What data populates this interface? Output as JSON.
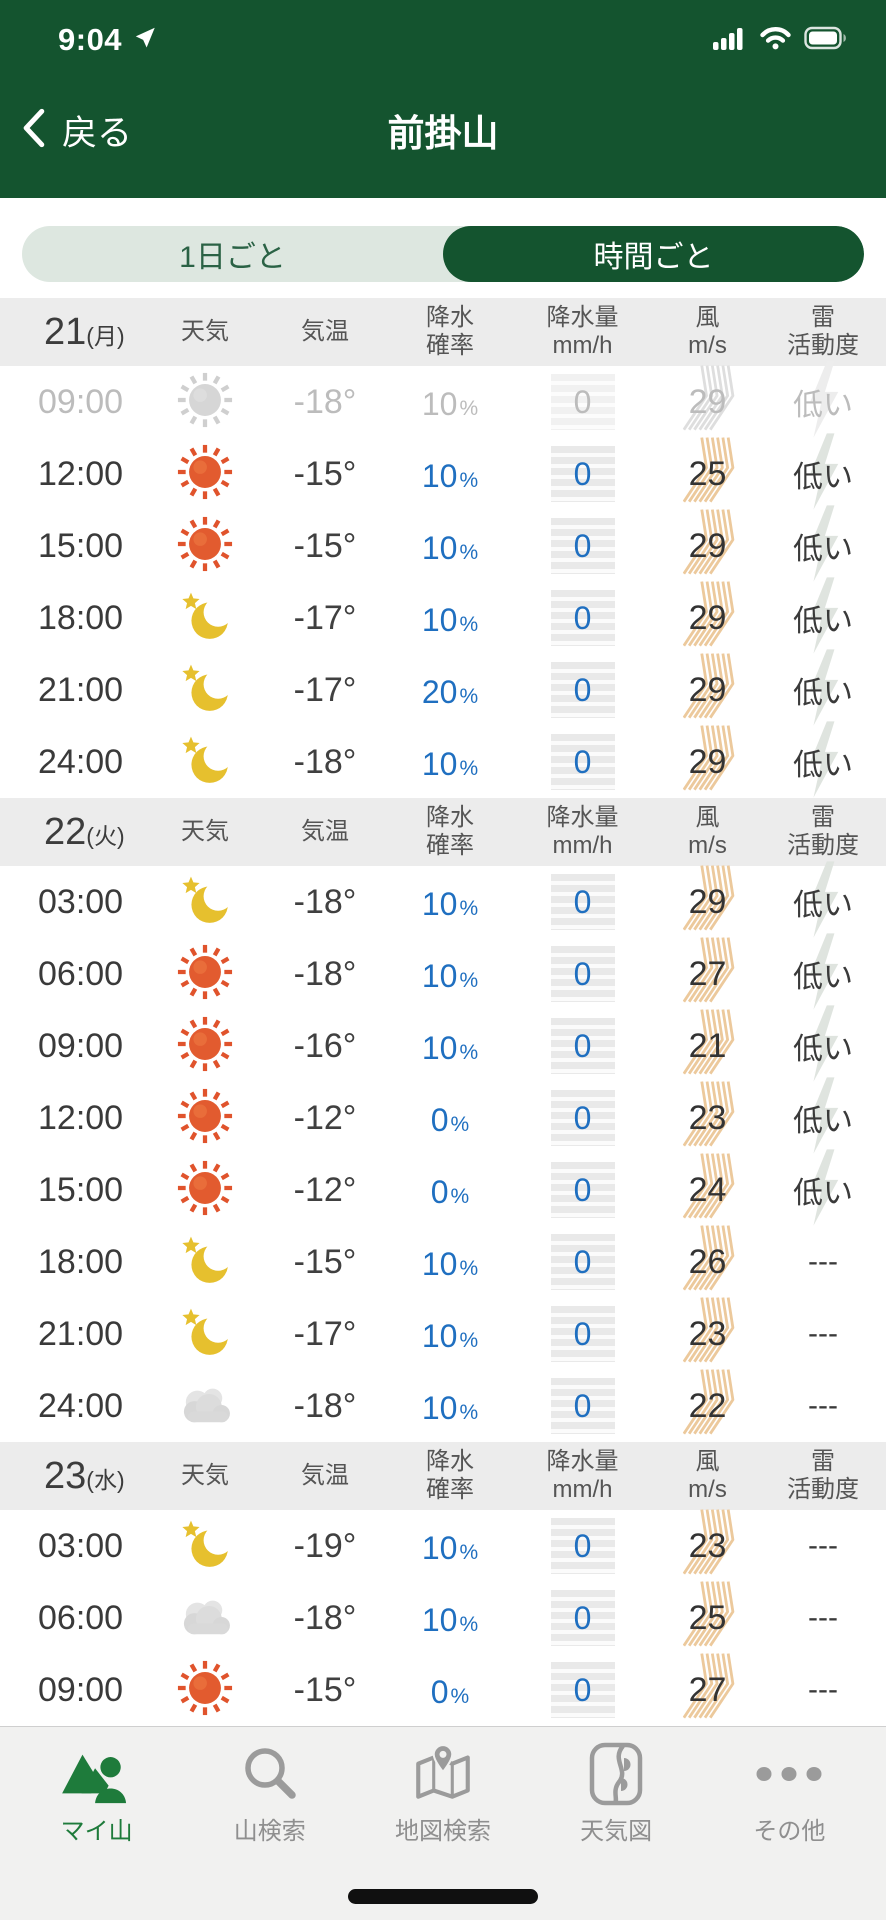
{
  "status_bar": {
    "time": "9:04"
  },
  "nav": {
    "back_label": "戻る",
    "title": "前掛山"
  },
  "tabs": [
    {
      "label": "1日ごと",
      "selected": false
    },
    {
      "label": "時間ごと",
      "selected": true
    }
  ],
  "table": {
    "percent": "%",
    "columns": {
      "weather": "天気",
      "temp": "気温",
      "pop": [
        "降水",
        "確率"
      ],
      "precip": [
        "降水量",
        "mm/h"
      ],
      "wind": [
        "風",
        "m/s"
      ],
      "thunder": [
        "雷",
        "活動度"
      ]
    },
    "days": [
      {
        "date": "21",
        "dow": "(月)",
        "rows": [
          {
            "time": "09:00",
            "icon": "sun",
            "temp": "-18°",
            "pop": "10",
            "precip": "0",
            "wind": "29",
            "thunder": "低い",
            "past": true
          },
          {
            "time": "12:00",
            "icon": "sun",
            "temp": "-15°",
            "pop": "10",
            "precip": "0",
            "wind": "25",
            "thunder": "低い"
          },
          {
            "time": "15:00",
            "icon": "sun",
            "temp": "-15°",
            "pop": "10",
            "precip": "0",
            "wind": "29",
            "thunder": "低い"
          },
          {
            "time": "18:00",
            "icon": "moon",
            "temp": "-17°",
            "pop": "10",
            "precip": "0",
            "wind": "29",
            "thunder": "低い"
          },
          {
            "time": "21:00",
            "icon": "moon",
            "temp": "-17°",
            "pop": "20",
            "precip": "0",
            "wind": "29",
            "thunder": "低い"
          },
          {
            "time": "24:00",
            "icon": "moon",
            "temp": "-18°",
            "pop": "10",
            "precip": "0",
            "wind": "29",
            "thunder": "低い"
          }
        ]
      },
      {
        "date": "22",
        "dow": "(火)",
        "rows": [
          {
            "time": "03:00",
            "icon": "moon",
            "temp": "-18°",
            "pop": "10",
            "precip": "0",
            "wind": "29",
            "thunder": "低い"
          },
          {
            "time": "06:00",
            "icon": "sun",
            "temp": "-18°",
            "pop": "10",
            "precip": "0",
            "wind": "27",
            "thunder": "低い"
          },
          {
            "time": "09:00",
            "icon": "sun",
            "temp": "-16°",
            "pop": "10",
            "precip": "0",
            "wind": "21",
            "thunder": "低い"
          },
          {
            "time": "12:00",
            "icon": "sun",
            "temp": "-12°",
            "pop": "0",
            "precip": "0",
            "wind": "23",
            "thunder": "低い"
          },
          {
            "time": "15:00",
            "icon": "sun",
            "temp": "-12°",
            "pop": "0",
            "precip": "0",
            "wind": "24",
            "thunder": "低い"
          },
          {
            "time": "18:00",
            "icon": "moon",
            "temp": "-15°",
            "pop": "10",
            "precip": "0",
            "wind": "26",
            "thunder": "---"
          },
          {
            "time": "21:00",
            "icon": "moon",
            "temp": "-17°",
            "pop": "10",
            "precip": "0",
            "wind": "23",
            "thunder": "---"
          },
          {
            "time": "24:00",
            "icon": "cloud",
            "temp": "-18°",
            "pop": "10",
            "precip": "0",
            "wind": "22",
            "thunder": "---"
          }
        ]
      },
      {
        "date": "23",
        "dow": "(水)",
        "rows": [
          {
            "time": "03:00",
            "icon": "moon",
            "temp": "-19°",
            "pop": "10",
            "precip": "0",
            "wind": "23",
            "thunder": "---"
          },
          {
            "time": "06:00",
            "icon": "cloud",
            "temp": "-18°",
            "pop": "10",
            "precip": "0",
            "wind": "25",
            "thunder": "---"
          },
          {
            "time": "09:00",
            "icon": "sun",
            "temp": "-15°",
            "pop": "0",
            "precip": "0",
            "wind": "27",
            "thunder": "---"
          }
        ]
      }
    ]
  },
  "footer": {
    "items": [
      {
        "label": "マイ山",
        "icon": "my-mountain-icon",
        "active": true
      },
      {
        "label": "山検索",
        "icon": "mountain-search-icon",
        "active": false
      },
      {
        "label": "地図検索",
        "icon": "map-search-icon",
        "active": false
      },
      {
        "label": "天気図",
        "icon": "weather-map-icon",
        "active": false
      },
      {
        "label": "その他",
        "icon": "more-icon",
        "active": false
      }
    ]
  },
  "colors": {
    "header_green": "#14542f",
    "accent_green": "#1e7b3b",
    "link_blue": "#1f6fc0",
    "wind_streak": "#ecc99c",
    "past_gray": "#bcbcbc"
  }
}
